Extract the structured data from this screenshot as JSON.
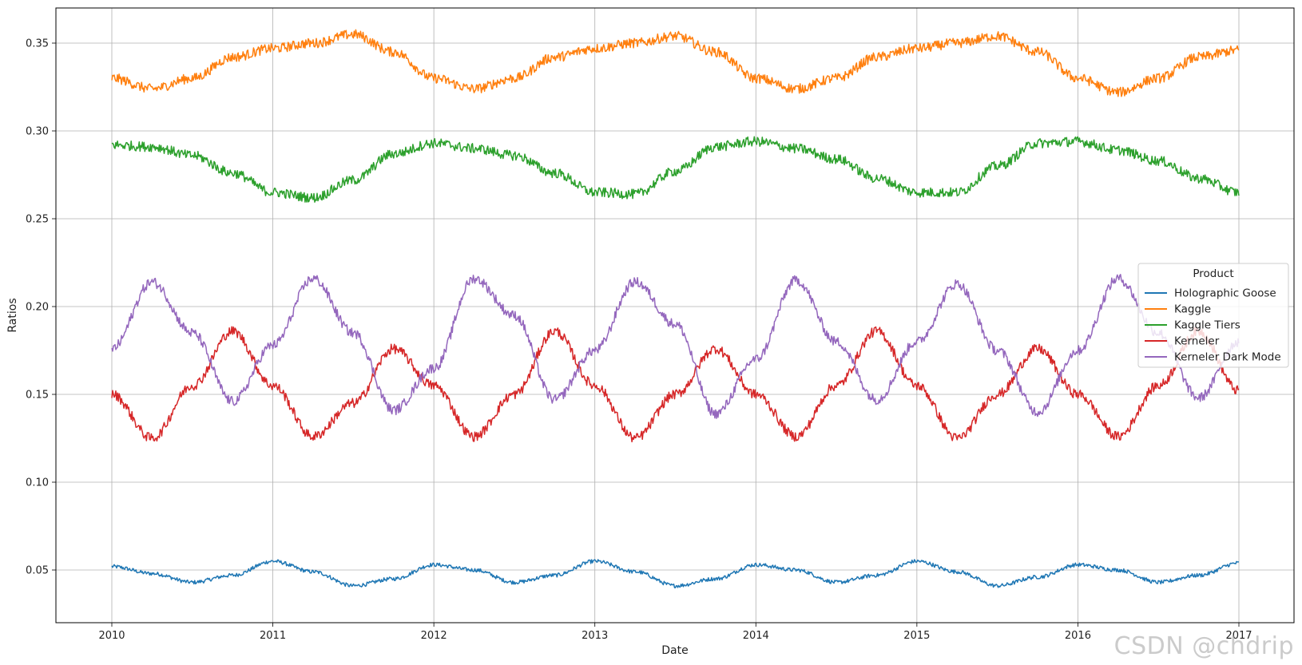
{
  "watermark": "CSDN @chdrip",
  "chart_data": {
    "type": "line",
    "xlabel": "Date",
    "ylabel": "Ratios",
    "x_range": [
      2010,
      2017
    ],
    "x_ticks": [
      "2010",
      "2011",
      "2012",
      "2013",
      "2014",
      "2015",
      "2016",
      "2017"
    ],
    "ylim": [
      0.02,
      0.37
    ],
    "y_ticks": [
      "0.05",
      "0.10",
      "0.15",
      "0.20",
      "0.25",
      "0.30",
      "0.35"
    ],
    "grid": true,
    "legend": {
      "title": "Product",
      "placement": "center-right"
    },
    "series": [
      {
        "name": "Holographic Goose",
        "color": "#1f77b4",
        "points": [
          [
            2010.0,
            0.052
          ],
          [
            2010.25,
            0.048
          ],
          [
            2010.5,
            0.043
          ],
          [
            2010.75,
            0.047
          ],
          [
            2011.0,
            0.055
          ],
          [
            2011.25,
            0.049
          ],
          [
            2011.5,
            0.041
          ],
          [
            2011.75,
            0.045
          ],
          [
            2012.0,
            0.053
          ],
          [
            2012.25,
            0.05
          ],
          [
            2012.5,
            0.043
          ],
          [
            2012.75,
            0.047
          ],
          [
            2013.0,
            0.055
          ],
          [
            2013.25,
            0.049
          ],
          [
            2013.5,
            0.041
          ],
          [
            2013.75,
            0.045
          ],
          [
            2014.0,
            0.053
          ],
          [
            2014.25,
            0.05
          ],
          [
            2014.5,
            0.043
          ],
          [
            2014.75,
            0.047
          ],
          [
            2015.0,
            0.055
          ],
          [
            2015.25,
            0.049
          ],
          [
            2015.5,
            0.041
          ],
          [
            2015.75,
            0.046
          ],
          [
            2016.0,
            0.053
          ],
          [
            2016.25,
            0.05
          ],
          [
            2016.5,
            0.043
          ],
          [
            2016.75,
            0.047
          ],
          [
            2017.0,
            0.054
          ]
        ]
      },
      {
        "name": "Kaggle",
        "color": "#ff7f0e",
        "points": [
          [
            2010.0,
            0.33
          ],
          [
            2010.25,
            0.324
          ],
          [
            2010.5,
            0.33
          ],
          [
            2010.75,
            0.342
          ],
          [
            2011.0,
            0.347
          ],
          [
            2011.25,
            0.35
          ],
          [
            2011.5,
            0.355
          ],
          [
            2011.75,
            0.345
          ],
          [
            2012.0,
            0.33
          ],
          [
            2012.25,
            0.324
          ],
          [
            2012.5,
            0.33
          ],
          [
            2012.75,
            0.342
          ],
          [
            2013.0,
            0.347
          ],
          [
            2013.25,
            0.35
          ],
          [
            2013.5,
            0.354
          ],
          [
            2013.75,
            0.345
          ],
          [
            2014.0,
            0.33
          ],
          [
            2014.25,
            0.324
          ],
          [
            2014.5,
            0.33
          ],
          [
            2014.75,
            0.342
          ],
          [
            2015.0,
            0.347
          ],
          [
            2015.25,
            0.35
          ],
          [
            2015.5,
            0.354
          ],
          [
            2015.75,
            0.345
          ],
          [
            2016.0,
            0.33
          ],
          [
            2016.25,
            0.322
          ],
          [
            2016.5,
            0.33
          ],
          [
            2016.75,
            0.342
          ],
          [
            2017.0,
            0.346
          ]
        ]
      },
      {
        "name": "Kaggle Tiers",
        "color": "#2ca02c",
        "points": [
          [
            2010.0,
            0.292
          ],
          [
            2010.25,
            0.291
          ],
          [
            2010.5,
            0.286
          ],
          [
            2010.75,
            0.276
          ],
          [
            2011.0,
            0.265
          ],
          [
            2011.25,
            0.262
          ],
          [
            2011.5,
            0.272
          ],
          [
            2011.75,
            0.287
          ],
          [
            2012.0,
            0.293
          ],
          [
            2012.25,
            0.29
          ],
          [
            2012.5,
            0.286
          ],
          [
            2012.75,
            0.276
          ],
          [
            2013.0,
            0.265
          ],
          [
            2013.25,
            0.264
          ],
          [
            2013.5,
            0.277
          ],
          [
            2013.75,
            0.291
          ],
          [
            2014.0,
            0.294
          ],
          [
            2014.25,
            0.29
          ],
          [
            2014.5,
            0.284
          ],
          [
            2014.75,
            0.273
          ],
          [
            2015.0,
            0.265
          ],
          [
            2015.25,
            0.265
          ],
          [
            2015.5,
            0.28
          ],
          [
            2015.75,
            0.293
          ],
          [
            2016.0,
            0.294
          ],
          [
            2016.25,
            0.289
          ],
          [
            2016.5,
            0.283
          ],
          [
            2016.75,
            0.273
          ],
          [
            2017.0,
            0.265
          ]
        ]
      },
      {
        "name": "Kerneler",
        "color": "#d62728",
        "points": [
          [
            2010.0,
            0.15
          ],
          [
            2010.25,
            0.125
          ],
          [
            2010.5,
            0.155
          ],
          [
            2010.75,
            0.186
          ],
          [
            2011.0,
            0.155
          ],
          [
            2011.25,
            0.126
          ],
          [
            2011.5,
            0.145
          ],
          [
            2011.75,
            0.176
          ],
          [
            2012.0,
            0.155
          ],
          [
            2012.25,
            0.126
          ],
          [
            2012.5,
            0.15
          ],
          [
            2012.75,
            0.186
          ],
          [
            2013.0,
            0.155
          ],
          [
            2013.25,
            0.125
          ],
          [
            2013.5,
            0.15
          ],
          [
            2013.75,
            0.176
          ],
          [
            2014.0,
            0.15
          ],
          [
            2014.25,
            0.126
          ],
          [
            2014.5,
            0.155
          ],
          [
            2014.75,
            0.186
          ],
          [
            2015.0,
            0.155
          ],
          [
            2015.25,
            0.125
          ],
          [
            2015.5,
            0.15
          ],
          [
            2015.75,
            0.176
          ],
          [
            2016.0,
            0.15
          ],
          [
            2016.25,
            0.126
          ],
          [
            2016.5,
            0.155
          ],
          [
            2016.75,
            0.186
          ],
          [
            2017.0,
            0.152
          ]
        ]
      },
      {
        "name": "Kerneler Dark Mode",
        "color": "#9467bd",
        "points": [
          [
            2010.0,
            0.176
          ],
          [
            2010.25,
            0.214
          ],
          [
            2010.5,
            0.185
          ],
          [
            2010.75,
            0.146
          ],
          [
            2011.0,
            0.178
          ],
          [
            2011.25,
            0.216
          ],
          [
            2011.5,
            0.185
          ],
          [
            2011.75,
            0.141
          ],
          [
            2012.0,
            0.165
          ],
          [
            2012.25,
            0.216
          ],
          [
            2012.5,
            0.195
          ],
          [
            2012.75,
            0.147
          ],
          [
            2013.0,
            0.175
          ],
          [
            2013.25,
            0.214
          ],
          [
            2013.5,
            0.19
          ],
          [
            2013.75,
            0.139
          ],
          [
            2014.0,
            0.17
          ],
          [
            2014.25,
            0.215
          ],
          [
            2014.5,
            0.18
          ],
          [
            2014.75,
            0.147
          ],
          [
            2015.0,
            0.18
          ],
          [
            2015.25,
            0.213
          ],
          [
            2015.5,
            0.175
          ],
          [
            2015.75,
            0.14
          ],
          [
            2016.0,
            0.175
          ],
          [
            2016.25,
            0.216
          ],
          [
            2016.5,
            0.185
          ],
          [
            2016.75,
            0.148
          ],
          [
            2017.0,
            0.18
          ]
        ]
      }
    ]
  }
}
